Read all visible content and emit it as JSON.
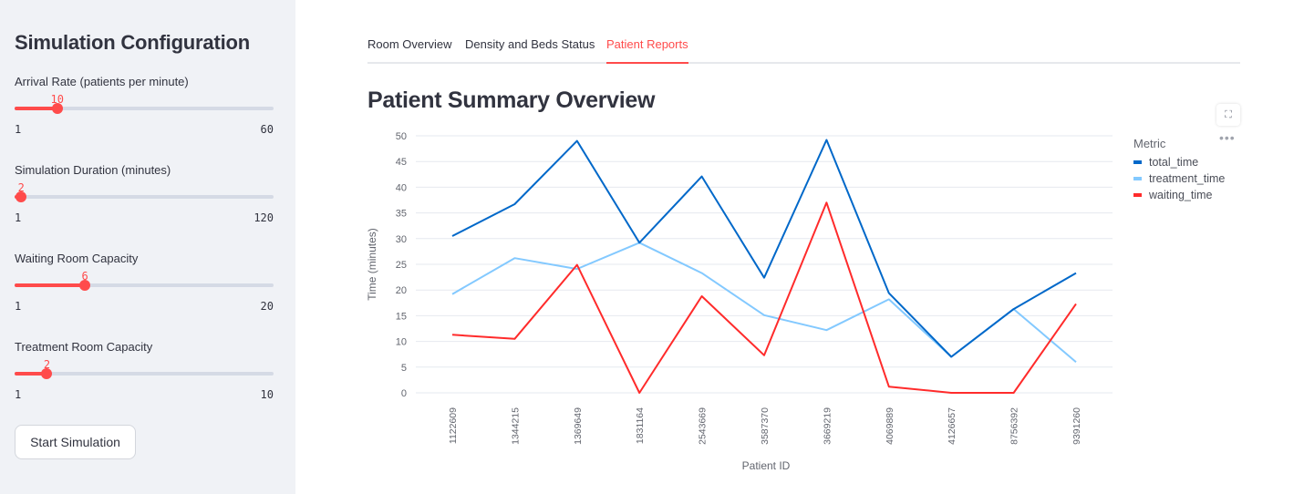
{
  "sidebar": {
    "title": "Simulation Configuration",
    "sliders": [
      {
        "label": "Arrival Rate (patients per minute)",
        "value": "10",
        "min": "1",
        "max": "60",
        "fraction": 0.1525
      },
      {
        "label": "Simulation Duration (minutes)",
        "value": "2",
        "min": "1",
        "max": "120",
        "fraction": 0.0084
      },
      {
        "label": "Waiting Room Capacity",
        "value": "6",
        "min": "1",
        "max": "20",
        "fraction": 0.2632
      },
      {
        "label": "Treatment Room Capacity",
        "value": "2",
        "min": "1",
        "max": "10",
        "fraction": 0.1111
      }
    ],
    "start_button": "Start Simulation"
  },
  "tabs": [
    {
      "label": "Room Overview",
      "active": false
    },
    {
      "label": "Density and Beds Status",
      "active": false
    },
    {
      "label": "Patient Reports",
      "active": true
    }
  ],
  "page_title": "Patient Summary Overview",
  "icons": {
    "fullscreen": "fullscreen-icon",
    "more": "more-options-icon"
  },
  "colors": {
    "accent": "#ff4b4b",
    "total_time": "#0068c9",
    "treatment_time": "#83c9ff",
    "waiting_time": "#ff2b2b"
  },
  "chart_data": {
    "type": "line",
    "title": "",
    "xlabel": "Patient ID",
    "ylabel": "Time (minutes)",
    "ylim": [
      0,
      50
    ],
    "yticks": [
      0,
      5,
      10,
      15,
      20,
      25,
      30,
      35,
      40,
      45,
      50
    ],
    "grid": true,
    "legend_title": "Metric",
    "legend_position": "right",
    "categories": [
      "1122609",
      "1344215",
      "1369649",
      "1831164",
      "2543669",
      "3587370",
      "3669219",
      "4069889",
      "4126657",
      "8756392",
      "9391260"
    ],
    "series": [
      {
        "name": "total_time",
        "values": [
          30.5,
          36.7,
          49.0,
          29.2,
          42.1,
          22.4,
          49.2,
          19.4,
          7.0,
          16.3,
          23.3
        ]
      },
      {
        "name": "treatment_time",
        "values": [
          19.2,
          26.2,
          24.1,
          29.2,
          23.3,
          15.1,
          12.2,
          18.2,
          7.0,
          16.3,
          6.0
        ]
      },
      {
        "name": "waiting_time",
        "values": [
          11.3,
          10.5,
          24.9,
          0.0,
          18.8,
          7.3,
          37.0,
          1.2,
          0.0,
          0.0,
          17.3
        ]
      }
    ]
  }
}
